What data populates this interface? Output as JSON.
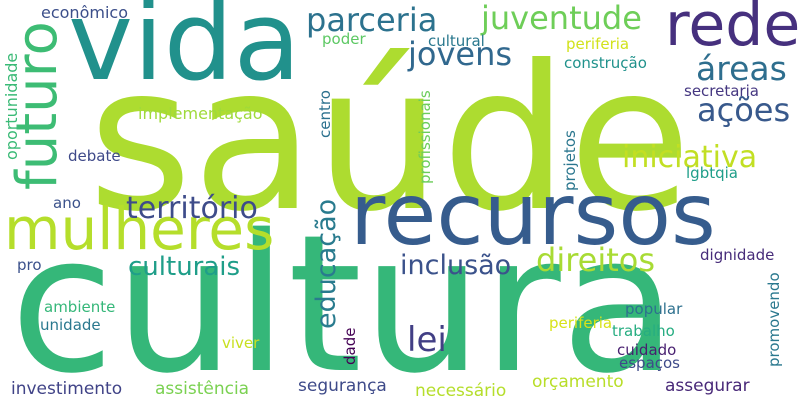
{
  "words": [
    {
      "text": "saúde",
      "color": "#addc30",
      "rotate": false
    },
    {
      "text": "cultura",
      "color": "#35b779",
      "rotate": false
    },
    {
      "text": "recursos",
      "color": "#365c8d",
      "rotate": false
    },
    {
      "text": "vida",
      "color": "#21918c",
      "rotate": false
    },
    {
      "text": "mulheres",
      "color": "#b5de2b",
      "rotate": false
    },
    {
      "text": "futuro",
      "color": "#3dbc74",
      "rotate": true
    },
    {
      "text": "rede",
      "color": "#46307e",
      "rotate": false
    },
    {
      "text": "parceria",
      "color": "#2c728e",
      "rotate": false
    },
    {
      "text": "juventude",
      "color": "#6ece58",
      "rotate": false
    },
    {
      "text": "jovens",
      "color": "#31688e",
      "rotate": false
    },
    {
      "text": "áreas",
      "color": "#2e6e8e",
      "rotate": false
    },
    {
      "text": "ações",
      "color": "#38598c",
      "rotate": false
    },
    {
      "text": "iniciativa",
      "color": "#c2df23",
      "rotate": false
    },
    {
      "text": "território",
      "color": "#3e4c8a",
      "rotate": false
    },
    {
      "text": "culturais",
      "color": "#1f9e89",
      "rotate": false
    },
    {
      "text": "educação",
      "color": "#297b8e",
      "rotate": true
    },
    {
      "text": "inclusão",
      "color": "#3b528b",
      "rotate": false
    },
    {
      "text": "direitos",
      "color": "#a8db34",
      "rotate": false
    },
    {
      "text": "lei",
      "color": "#423f85",
      "rotate": false
    },
    {
      "text": "econômico",
      "color": "#3c4f8a",
      "rotate": false
    },
    {
      "text": "oportunidade",
      "color": "#3aba76",
      "rotate": true
    },
    {
      "text": "poder",
      "color": "#5cc863",
      "rotate": false
    },
    {
      "text": "cultural",
      "color": "#2a788e",
      "rotate": false
    },
    {
      "text": "periferia",
      "color": "#d2e21b",
      "rotate": false
    },
    {
      "text": "construção",
      "color": "#20928c",
      "rotate": false
    },
    {
      "text": "secretaria",
      "color": "#453781",
      "rotate": false
    },
    {
      "text": "implementação",
      "color": "#9fda3a",
      "rotate": false
    },
    {
      "text": "centro",
      "color": "#2c718e",
      "rotate": true
    },
    {
      "text": "profissionais",
      "color": "#6ccd5a",
      "rotate": true
    },
    {
      "text": "projetos",
      "color": "#2a768e",
      "rotate": true
    },
    {
      "text": "debate",
      "color": "#3e4989",
      "rotate": false
    },
    {
      "text": "lgbtqia",
      "color": "#1f9e89",
      "rotate": false
    },
    {
      "text": "ano",
      "color": "#3b528b",
      "rotate": false
    },
    {
      "text": "pro",
      "color": "#3b518b",
      "rotate": false
    },
    {
      "text": "dignidade",
      "color": "#472c7a",
      "rotate": false
    },
    {
      "text": "popular",
      "color": "#2d708e",
      "rotate": false
    },
    {
      "text": "ambiente",
      "color": "#35b779",
      "rotate": false
    },
    {
      "text": "unidade",
      "color": "#2a788e",
      "rotate": false
    },
    {
      "text": "periferia",
      "color": "#d8e219",
      "rotate": false
    },
    {
      "text": "trabalho",
      "color": "#26ad81",
      "rotate": false
    },
    {
      "text": "viver",
      "color": "#c8e020",
      "rotate": false
    },
    {
      "text": "dade",
      "color": "#440154",
      "rotate": true
    },
    {
      "text": "cuidado",
      "color": "#481f70",
      "rotate": false
    },
    {
      "text": "promovendo",
      "color": "#2a788e",
      "rotate": true
    },
    {
      "text": "espaços",
      "color": "#3e4a89",
      "rotate": false
    },
    {
      "text": "investimento",
      "color": "#404387",
      "rotate": false
    },
    {
      "text": "assistência",
      "color": "#7ad151",
      "rotate": false
    },
    {
      "text": "segurança",
      "color": "#3e4a89",
      "rotate": false
    },
    {
      "text": "necessário",
      "color": "#b5de2b",
      "rotate": false
    },
    {
      "text": "orçamento",
      "color": "#b8de29",
      "rotate": false
    },
    {
      "text": "assegurar",
      "color": "#482878",
      "rotate": false
    }
  ]
}
